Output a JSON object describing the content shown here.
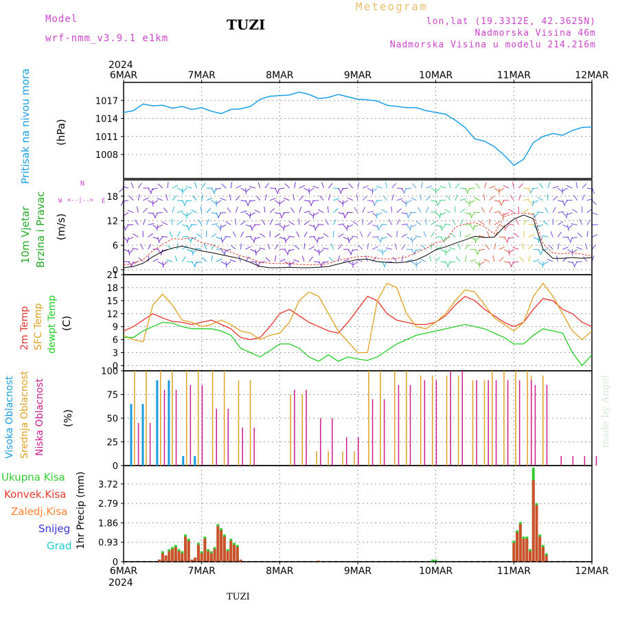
{
  "header": {
    "model_label": "Model",
    "model_name": "wrf-nmm_v3.9.1  e1km",
    "station": "TUZI",
    "meteogram": "Meteogram",
    "lonlat": "lon,lat (19.3312E, 42.3625N)",
    "altitude": "Nadmorska Visina 46m",
    "model_altitude": "Nadmorska Visina u modelu 214.216m"
  },
  "footer": {
    "station": "TUZI",
    "credit": "made by Angel"
  },
  "time_axis": {
    "year": "2024",
    "labels": [
      "6MAR",
      "7MAR",
      "8MAR",
      "9MAR",
      "10MAR",
      "11MAR",
      "12MAR"
    ],
    "hours": 144
  },
  "colors": {
    "pressure": "#1a9fe6",
    "wind_speed": "#000000",
    "wind_gust": "#e83a2a",
    "temp2m": "#e8302a",
    "sfc_temp": "#e0a020",
    "dewpt": "#22cc22",
    "cloud_high": "#1a9be0",
    "cloud_mid": "#e0a020",
    "cloud_low": "#cc1a8a",
    "precip_total": "#33cc33",
    "precip_conv": "#e83a2a",
    "precip_frz": "#ff8030",
    "snow": "#3333dd",
    "hail": "#22cccc",
    "label_mag": "#cc44cc",
    "label_orange": "#e8b040"
  },
  "panel_labels": {
    "pressure": {
      "line1": "Pritisak na nivou mora",
      "unit": "(hPa)"
    },
    "wind": {
      "line1": "10m Vjetar",
      "line2": "Brzina i Pravac",
      "unit": "(m/s)",
      "compass_n": "N",
      "compass_w": "W",
      "compass_e": "E",
      "compass_arrow": "<--|-->"
    },
    "temp": {
      "line1": "2m Temp",
      "line2": "SFC Temp",
      "line3": "dewpt Temp",
      "unit": "(C)"
    },
    "cloud": {
      "line1": "Visoka Oblacnost",
      "line2": "Srednja Oblacnost",
      "line3": "Niska Oblacnost",
      "unit": "(%)"
    },
    "precip": {
      "unit": "1hr Precip (mm)",
      "legend": [
        "Ukupna Kisa",
        "Konvek.Kisa",
        "Zaledj.Kisa",
        "Snijeg",
        "Grad"
      ]
    }
  },
  "chart_data": [
    {
      "type": "line",
      "name": "pressure",
      "ylabel": "(hPa)",
      "ylim": [
        1004,
        1020
      ],
      "yticks": [
        1008,
        1011,
        1014,
        1017
      ],
      "x": [
        0,
        3,
        6,
        9,
        12,
        15,
        18,
        21,
        24,
        27,
        30,
        33,
        36,
        39,
        42,
        45,
        48,
        51,
        54,
        57,
        60,
        63,
        66,
        69,
        72,
        75,
        78,
        81,
        84,
        87,
        90,
        93,
        96,
        99,
        102,
        105,
        108,
        111,
        114,
        117,
        120,
        123,
        126,
        129,
        132,
        135,
        138,
        141,
        144
      ],
      "values": [
        1015,
        1015.3,
        1016.4,
        1016.1,
        1016.2,
        1015.7,
        1016,
        1015.5,
        1015.8,
        1015.2,
        1014.8,
        1015.5,
        1015.6,
        1016,
        1017.2,
        1017.7,
        1017.8,
        1017.9,
        1018.4,
        1018,
        1017.3,
        1017.5,
        1018,
        1017.6,
        1017.2,
        1017.1,
        1016.9,
        1016.2,
        1016,
        1015.8,
        1015.8,
        1015.3,
        1015,
        1014.7,
        1013.7,
        1012.5,
        1010.6,
        1010.2,
        1009.3,
        1007.9,
        1006.2,
        1007.2,
        1010,
        1011,
        1011.5,
        1011.2,
        1012,
        1012.5,
        1012.6
      ]
    },
    {
      "type": "line",
      "name": "wind",
      "ylabel": "(m/s)",
      "ylim": [
        -1.2,
        22
      ],
      "yticks": [
        0,
        6,
        12,
        18
      ],
      "x": [
        0,
        3,
        6,
        9,
        12,
        15,
        18,
        21,
        24,
        27,
        30,
        33,
        36,
        39,
        42,
        45,
        48,
        51,
        54,
        57,
        60,
        63,
        66,
        69,
        72,
        75,
        78,
        81,
        84,
        87,
        90,
        93,
        96,
        99,
        102,
        105,
        108,
        111,
        114,
        117,
        120,
        123,
        126,
        129,
        132,
        135,
        138,
        141,
        144
      ],
      "series": [
        {
          "name": "speed",
          "values": [
            0.5,
            0.8,
            1.6,
            3.2,
            4.5,
            5.3,
            5.8,
            5.2,
            4.6,
            4.2,
            3.7,
            3.2,
            2.7,
            1.8,
            0.8,
            0.5,
            0.5,
            0.6,
            0.5,
            0.5,
            0.6,
            0.8,
            1.4,
            2,
            2.5,
            2.6,
            2,
            1.8,
            1.7,
            1.9,
            2.4,
            3.5,
            4.9,
            5.6,
            6.5,
            7.3,
            8.2,
            7.9,
            8,
            10.5,
            12.4,
            13.4,
            12.5,
            5,
            2.8,
            2.8,
            3,
            2.8,
            3
          ]
        },
        {
          "name": "gust",
          "values": [
            1.2,
            1.5,
            2.5,
            4.7,
            6.2,
            7.6,
            7.5,
            7.9,
            6.6,
            6.2,
            5.2,
            4.3,
            3.4,
            2.8,
            1.8,
            1.6,
            1.5,
            1.6,
            1.3,
            1.2,
            1.3,
            1.5,
            2.4,
            2.8,
            3.2,
            3.3,
            2.8,
            2.6,
            2.8,
            3.1,
            4.2,
            5.2,
            6.6,
            7.2,
            10.4,
            11.2,
            11.6,
            10.5,
            8.8,
            13,
            13.8,
            13.9,
            13.5,
            6.3,
            4.1,
            3.9,
            4.2,
            3.8,
            3.4
          ]
        }
      ]
    },
    {
      "type": "line",
      "name": "temperature",
      "ylabel": "(C)",
      "ylim": [
        -1.2,
        21
      ],
      "yticks": [
        0,
        3,
        6,
        9,
        12,
        15,
        18,
        21
      ],
      "x": [
        0,
        3,
        6,
        9,
        12,
        15,
        18,
        21,
        24,
        27,
        30,
        33,
        36,
        39,
        42,
        45,
        48,
        51,
        54,
        57,
        60,
        63,
        66,
        69,
        72,
        75,
        78,
        81,
        84,
        87,
        90,
        93,
        96,
        99,
        102,
        105,
        108,
        111,
        114,
        117,
        120,
        123,
        126,
        129,
        132,
        135,
        138,
        141,
        144
      ],
      "series": [
        {
          "name": "2m Temp",
          "values": [
            8,
            9,
            10.5,
            12,
            11,
            10.2,
            10,
            9.5,
            10,
            10.5,
            9.5,
            8.5,
            6.5,
            6,
            6.5,
            9,
            12,
            13,
            11.5,
            10,
            9,
            8,
            7.5,
            10,
            13,
            16,
            15,
            12,
            10.5,
            10,
            9.5,
            9.5,
            10,
            11.5,
            14,
            16,
            15,
            13,
            11.5,
            10,
            9,
            10,
            13,
            15.5,
            15,
            13,
            12,
            10,
            9
          ]
        },
        {
          "name": "SFC Temp",
          "values": [
            7,
            6,
            5.5,
            14,
            16.5,
            14,
            10.5,
            10,
            9,
            9.5,
            10.5,
            9.5,
            8,
            7.5,
            6,
            7,
            7.5,
            10,
            15,
            17,
            16,
            12,
            8,
            5.5,
            3,
            3,
            15,
            19,
            18,
            12,
            9,
            8.5,
            10,
            12,
            15,
            17.5,
            17,
            14,
            11,
            9.5,
            8,
            10,
            16,
            19,
            16,
            12,
            8,
            6,
            8
          ]
        },
        {
          "name": "dewpt Temp",
          "values": [
            6.5,
            6.5,
            8,
            9,
            10,
            9.8,
            9,
            8.5,
            8.5,
            8.5,
            8,
            7,
            4,
            3,
            2,
            3.5,
            5,
            5,
            4,
            2,
            1,
            2.5,
            1,
            2,
            1.5,
            1.2,
            2,
            3.5,
            5,
            6,
            7,
            7.5,
            8,
            8.5,
            9,
            9.5,
            9,
            8.5,
            7.5,
            6.5,
            5,
            5,
            7,
            8.5,
            8,
            7.5,
            3,
            0,
            2.5
          ]
        }
      ]
    },
    {
      "type": "bar",
      "name": "cloud",
      "ylabel": "(%)",
      "ylim": [
        0,
        100
      ],
      "yticks": [
        0,
        25,
        50,
        75,
        100
      ],
      "x_start": [
        2,
        10,
        18,
        26,
        34,
        50,
        58,
        66,
        74,
        82,
        90,
        98,
        106,
        112,
        124,
        132
      ],
      "x_end": [
        9,
        17,
        25,
        33,
        40,
        57,
        65,
        73,
        81,
        89,
        97,
        105,
        111,
        123,
        131,
        144
      ],
      "series": [
        {
          "name": "Visoka Oblacnost",
          "values": [
            65,
            90,
            10,
            0,
            0,
            0,
            0,
            0,
            0,
            0,
            0,
            0,
            0,
            0,
            0,
            0
          ]
        },
        {
          "name": "Srednja Oblacnost",
          "values": [
            100,
            100,
            100,
            100,
            90,
            75,
            15,
            15,
            100,
            100,
            95,
            95,
            90,
            100,
            95,
            0
          ]
        },
        {
          "name": "Niska Oblacnost",
          "values": [
            45,
            80,
            85,
            60,
            40,
            80,
            50,
            30,
            70,
            85,
            90,
            100,
            90,
            90,
            85,
            10
          ]
        }
      ]
    },
    {
      "type": "bar",
      "name": "precip",
      "ylabel": "1hr Precip (mm)",
      "ylim": [
        0,
        4.6
      ],
      "yticks": [
        0,
        0.93,
        1.86,
        2.79,
        3.72
      ],
      "x": [
        11,
        12,
        13,
        14,
        15,
        16,
        17,
        18,
        19,
        20,
        21,
        22,
        23,
        24,
        25,
        26,
        27,
        28,
        29,
        30,
        31,
        32,
        33,
        34,
        35,
        36,
        37,
        38,
        39,
        40,
        60,
        95,
        96,
        120,
        121,
        122,
        123,
        124,
        125,
        126,
        127,
        128,
        129,
        130
      ],
      "series": [
        {
          "name": "Ukupna Kisa",
          "values": [
            0.1,
            0.5,
            0.3,
            0.6,
            0.7,
            0.8,
            0.6,
            0.5,
            1.3,
            1.1,
            0.1,
            0.2,
            0.9,
            0.5,
            1.2,
            0.6,
            0.5,
            0.7,
            1.8,
            1.6,
            1.3,
            0.6,
            1.1,
            0.9,
            0.8,
            0.1,
            0,
            0,
            0,
            0,
            0.05,
            0.1,
            0.1,
            1.0,
            1.5,
            1.9,
            1.2,
            1.2,
            0.6,
            4.5,
            2.8,
            1.3,
            0.8,
            0.4
          ]
        },
        {
          "name": "Konvek.Kisa",
          "values": [
            0.1,
            0.4,
            0.3,
            0.5,
            0.6,
            0.7,
            0.5,
            0.4,
            1.2,
            1.0,
            0.1,
            0.2,
            0.8,
            0.4,
            1.1,
            0.5,
            0.4,
            0.6,
            1.7,
            1.5,
            1.2,
            0.5,
            1.0,
            0.8,
            0.7,
            0.1,
            0,
            0,
            0,
            0,
            0.05,
            0,
            0,
            0.9,
            1.4,
            1.8,
            1.1,
            1.1,
            0.5,
            3.9,
            2.7,
            1.2,
            0.7,
            0.3
          ]
        }
      ]
    }
  ]
}
